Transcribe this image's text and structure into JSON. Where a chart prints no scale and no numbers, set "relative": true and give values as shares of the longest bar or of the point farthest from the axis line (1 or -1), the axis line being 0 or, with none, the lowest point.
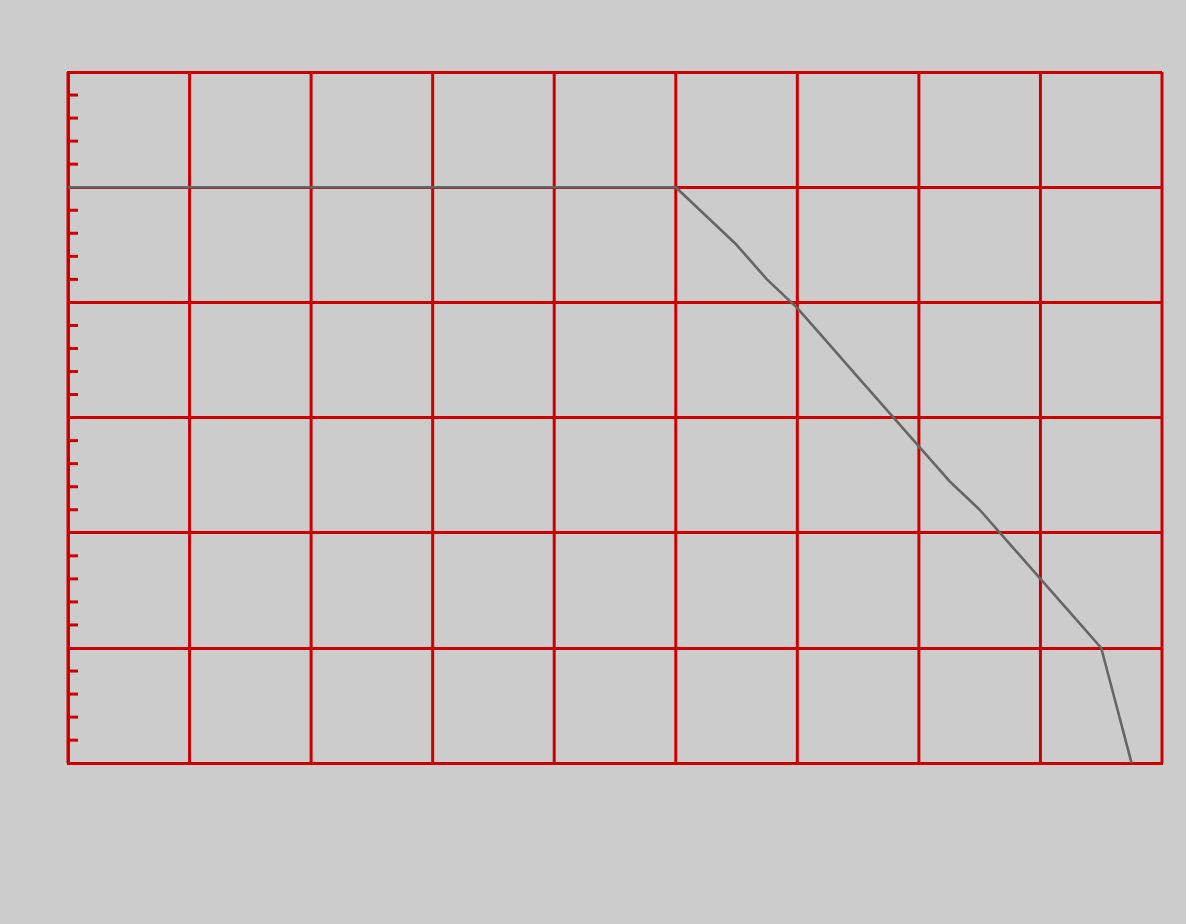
{
  "chart_data": {
    "type": "line",
    "relative": true,
    "categories": [
      null,
      null,
      null,
      null,
      null,
      null,
      null,
      null,
      null,
      null,
      null,
      null,
      null,
      null,
      null,
      null,
      null,
      null,
      null,
      null,
      null,
      null,
      null,
      null,
      null,
      null,
      null,
      null,
      null,
      null,
      null,
      null,
      null,
      null,
      null,
      null,
      null
    ],
    "series": [
      {
        "color": "#666666",
        "values": [
          1,
          1,
          1,
          1,
          1,
          1,
          1,
          1,
          1,
          1,
          1,
          1,
          1,
          1,
          1,
          1,
          1,
          1,
          1,
          1,
          1,
          0.95,
          0.9,
          0.84,
          0.79,
          0.73,
          0.67,
          0.61,
          0.55,
          0.49,
          0.44,
          0.38,
          0.32,
          0.26,
          0.2,
          0,
          null
        ]
      }
    ],
    "grid": true
  }
}
